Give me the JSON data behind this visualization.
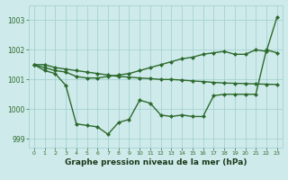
{
  "x": [
    0,
    1,
    2,
    3,
    4,
    5,
    6,
    7,
    8,
    9,
    10,
    11,
    12,
    13,
    14,
    15,
    16,
    17,
    18,
    19,
    20,
    21,
    22,
    23
  ],
  "line1_smooth": [
    1001.5,
    1001.5,
    1001.4,
    1001.35,
    1001.3,
    1001.25,
    1001.2,
    1001.15,
    1001.1,
    1001.08,
    1001.05,
    1001.03,
    1001.0,
    1001.0,
    1000.98,
    1000.95,
    1000.93,
    1000.9,
    1000.88,
    1000.87,
    1000.86,
    1000.85,
    1000.84,
    1000.83
  ],
  "line2_rising": [
    1001.5,
    1001.4,
    1001.3,
    1001.25,
    1001.1,
    1001.05,
    1001.05,
    1001.1,
    1001.15,
    1001.2,
    1001.3,
    1001.4,
    1001.5,
    1001.6,
    1001.7,
    1001.75,
    1001.85,
    1001.9,
    1001.95,
    1001.85,
    1001.85,
    1002.0,
    1001.95,
    1003.1
  ],
  "line3_volatile": [
    1001.5,
    1001.3,
    1001.2,
    1000.8,
    999.5,
    999.45,
    999.4,
    999.15,
    999.55,
    999.65,
    1000.3,
    1000.2,
    999.8,
    999.75,
    999.8,
    999.75,
    999.75,
    1000.45,
    1000.5,
    1000.5,
    1000.5,
    1000.5,
    1002.0,
    1001.9
  ],
  "bg_color": "#ceeaea",
  "grid_color": "#9ecece",
  "line_color": "#2d6a2d",
  "xlabel": "Graphe pression niveau de la mer (hPa)",
  "ylim": [
    998.7,
    1003.5
  ],
  "yticks": [
    999,
    1000,
    1001,
    1002,
    1003
  ],
  "xtick_labels": [
    "0",
    "1",
    "2",
    "3",
    "4",
    "5",
    "6",
    "7",
    "8",
    "9",
    "10",
    "11",
    "12",
    "13",
    "14",
    "15",
    "16",
    "17",
    "18",
    "19",
    "20",
    "21",
    "22",
    "23"
  ],
  "marker": "D",
  "marker_size": 2.0,
  "line_width": 1.0
}
